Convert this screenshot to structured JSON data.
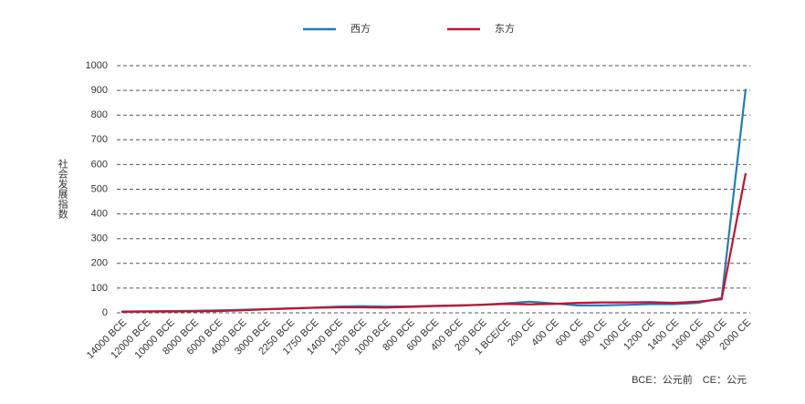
{
  "chart_data": {
    "type": "line",
    "ylabel": "社会发展指数",
    "note": "BCE：公元前　CE：公元",
    "categories": [
      "14000 BCE",
      "12000 BCE",
      "10000 BCE",
      "8000 BCE",
      "6000 BCE",
      "4000 BCE",
      "3000 BCE",
      "2250 BCE",
      "1750 BCE",
      "1400 BCE",
      "1200 BCE",
      "1000 BCE",
      "800 BCE",
      "600 BCE",
      "400 BCE",
      "200 BCE",
      "1 BCE/CE",
      "200 CE",
      "400 CE",
      "600 CE",
      "800 CE",
      "1000 CE",
      "1200 CE",
      "1400 CE",
      "1600 CE",
      "1800 CE",
      "2000 CE"
    ],
    "series": [
      {
        "name": "西方",
        "color": "#1f7fb8",
        "values": [
          5,
          6,
          7,
          8,
          10,
          12,
          15,
          18,
          21,
          25,
          27,
          25,
          26,
          28,
          30,
          33,
          38,
          45,
          38,
          30,
          30,
          32,
          35,
          35,
          40,
          60,
          906
        ]
      },
      {
        "name": "东方",
        "color": "#c8102e",
        "values": [
          4,
          5,
          5,
          6,
          7,
          10,
          14,
          17,
          20,
          22,
          22,
          21,
          24,
          27,
          29,
          32,
          36,
          34,
          36,
          40,
          42,
          42,
          43,
          40,
          45,
          55,
          565
        ]
      }
    ],
    "ylim": [
      0,
      1000
    ],
    "yticks": [
      0,
      100,
      200,
      300,
      400,
      500,
      600,
      700,
      800,
      900,
      1000
    ],
    "grid": true
  }
}
